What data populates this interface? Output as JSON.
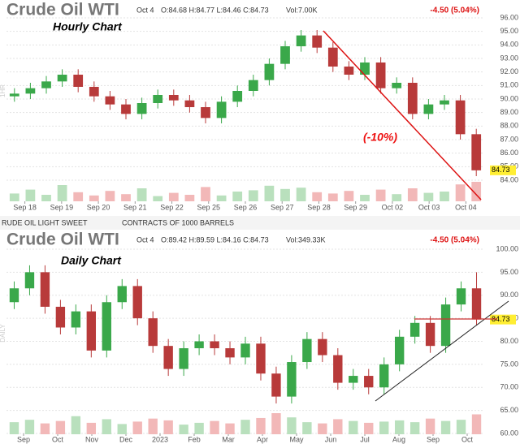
{
  "chart_data": [
    {
      "type": "candlestick",
      "title": "Crude Oil WTI",
      "annotation": "Hourly Chart",
      "callout": "(-10%)",
      "side_label": "1HR",
      "date": "Oct 4",
      "ohlc_text": "O:84.68 H:84.77 L:84.46 C:84.73",
      "volume_text": "Vol:7.00K",
      "change": "-4.50 (5.04%)",
      "last_price": 84.73,
      "up_color": "#3aa84a",
      "down_color": "#b83a3a",
      "grid": true,
      "xtick_labels": [
        "Sep 18",
        "Sep 19",
        "Sep 20",
        "Sep 21",
        "Sep 22",
        "Sep 25",
        "Sep 26",
        "Sep 27",
        "Sep 28",
        "Sep 29",
        "Oct 02",
        "Oct 03",
        "Oct 04"
      ],
      "ylim": [
        84,
        96
      ],
      "yticks": [
        {
          "value": 84,
          "label": "84.00"
        },
        {
          "value": 85,
          "label": "85.00"
        },
        {
          "value": 86,
          "label": "86.00"
        },
        {
          "value": 87,
          "label": "87.00"
        },
        {
          "value": 88,
          "label": "88.00"
        },
        {
          "value": 89,
          "label": "89.00"
        },
        {
          "value": 90,
          "label": "90.00"
        },
        {
          "value": 91,
          "label": "91.00"
        },
        {
          "value": 92,
          "label": "92.00"
        },
        {
          "value": 93,
          "label": "93.00"
        },
        {
          "value": 94,
          "label": "94.00"
        },
        {
          "value": 95,
          "label": "95.00"
        },
        {
          "value": 96,
          "label": "96.00"
        }
      ],
      "open": [
        90.2,
        90.4,
        90.8,
        91.3,
        91.8,
        90.9,
        90.2,
        89.6,
        88.9,
        89.7,
        90.3,
        89.9,
        89.4,
        88.6,
        89.8,
        90.6,
        91.4,
        92.6,
        93.9,
        94.7,
        93.8,
        92.4,
        91.8,
        92.7,
        90.8,
        91.2,
        88.9,
        89.6,
        89.9,
        87.4
      ],
      "high": [
        90.8,
        91.2,
        91.7,
        92.2,
        92.2,
        91.3,
        90.6,
        90.0,
        90.1,
        90.7,
        90.7,
        90.3,
        89.8,
        90.2,
        91.0,
        91.8,
        93.0,
        94.3,
        95.1,
        95.1,
        94.2,
        92.8,
        93.1,
        93.1,
        91.6,
        91.6,
        90.0,
        90.3,
        90.3,
        87.8
      ],
      "low": [
        89.8,
        90.0,
        90.4,
        90.9,
        90.5,
        89.8,
        89.2,
        88.5,
        88.5,
        89.3,
        89.5,
        89.0,
        88.2,
        88.2,
        89.4,
        90.2,
        91.0,
        92.2,
        93.5,
        93.4,
        92.0,
        91.4,
        91.4,
        90.4,
        90.4,
        88.5,
        88.5,
        89.2,
        87.0,
        84.3
      ],
      "close": [
        90.4,
        90.8,
        91.3,
        91.8,
        90.9,
        90.2,
        89.6,
        88.9,
        89.7,
        90.3,
        89.9,
        89.4,
        88.6,
        89.8,
        90.6,
        91.4,
        92.6,
        93.9,
        94.7,
        93.8,
        92.4,
        91.8,
        92.7,
        90.8,
        91.2,
        88.9,
        89.6,
        89.9,
        87.4,
        84.73
      ],
      "volume": [
        12,
        18,
        10,
        25,
        14,
        9,
        16,
        11,
        20,
        8,
        13,
        10,
        22,
        9,
        15,
        17,
        24,
        19,
        21,
        14,
        12,
        16,
        10,
        18,
        11,
        20,
        13,
        15,
        26,
        30
      ]
    },
    {
      "type": "candlestick",
      "title": "Crude Oil WTI",
      "annotation": "Daily Chart",
      "side_label": "DAILY",
      "date": "Oct 4",
      "ohlc_text": "O:89.42 H:89.59 L:84.16 C:84.73",
      "volume_text": "Vol:349.33K",
      "change": "-4.50 (5.04%)",
      "last_price": 84.73,
      "up_color": "#3aa84a",
      "down_color": "#b83a3a",
      "grid": true,
      "xtick_labels": [
        "Sep",
        "Oct",
        "Nov",
        "Dec",
        "2023",
        "Feb",
        "Mar",
        "Apr",
        "May",
        "Jun",
        "Jul",
        "Aug",
        "Sep",
        "Oct"
      ],
      "ylim": [
        60,
        100
      ],
      "yticks": [
        {
          "value": 60,
          "label": "60.00"
        },
        {
          "value": 65,
          "label": "65.00"
        },
        {
          "value": 70,
          "label": "70.00"
        },
        {
          "value": 75,
          "label": "75.00"
        },
        {
          "value": 80,
          "label": "80.00"
        },
        {
          "value": 85,
          "label": "85.00"
        },
        {
          "value": 90,
          "label": "90.00"
        },
        {
          "value": 95,
          "label": "95.00"
        },
        {
          "value": 100,
          "label": "100.00"
        }
      ],
      "open": [
        88.5,
        91.5,
        95.0,
        87.5,
        83.0,
        86.5,
        78.0,
        88.5,
        92.0,
        85.0,
        79.0,
        74.0,
        78.5,
        80.0,
        78.5,
        76.5,
        79.5,
        73.0,
        68.0,
        75.5,
        80.5,
        77.0,
        71.0,
        72.5,
        70.0,
        75.0,
        81.0,
        84.0,
        79.0,
        88.0,
        91.5
      ],
      "high": [
        93.0,
        96.5,
        96.5,
        89.0,
        88.0,
        88.0,
        90.0,
        93.5,
        93.5,
        86.5,
        80.5,
        80.0,
        81.5,
        81.5,
        80.0,
        81.0,
        81.0,
        74.5,
        77.0,
        82.0,
        82.0,
        78.5,
        74.0,
        74.0,
        76.5,
        82.5,
        85.5,
        85.5,
        89.5,
        93.0,
        95.0
      ],
      "low": [
        87.0,
        90.0,
        86.0,
        81.5,
        81.5,
        76.5,
        76.5,
        87.0,
        83.5,
        77.5,
        72.5,
        72.5,
        77.0,
        77.0,
        75.0,
        75.0,
        71.5,
        66.5,
        66.5,
        74.0,
        75.5,
        69.5,
        69.5,
        68.5,
        68.5,
        73.5,
        79.5,
        77.5,
        77.5,
        86.5,
        83.5
      ],
      "close": [
        91.5,
        95.0,
        87.5,
        83.0,
        86.5,
        78.0,
        88.5,
        92.0,
        85.0,
        79.0,
        74.0,
        78.5,
        80.0,
        78.5,
        76.5,
        79.5,
        73.0,
        68.0,
        75.5,
        80.5,
        77.0,
        71.0,
        72.5,
        70.0,
        75.0,
        81.0,
        84.0,
        79.0,
        88.0,
        91.5,
        84.73
      ],
      "volume": [
        20,
        24,
        18,
        22,
        30,
        19,
        25,
        17,
        21,
        26,
        23,
        16,
        19,
        22,
        18,
        24,
        27,
        35,
        28,
        20,
        18,
        25,
        22,
        19,
        21,
        23,
        20,
        26,
        22,
        24,
        33
      ]
    }
  ],
  "strip": {
    "instrument": "RUDE OIL LIGHT SWEET",
    "contract": "CONTRACTS OF 1000 BARRELS"
  }
}
